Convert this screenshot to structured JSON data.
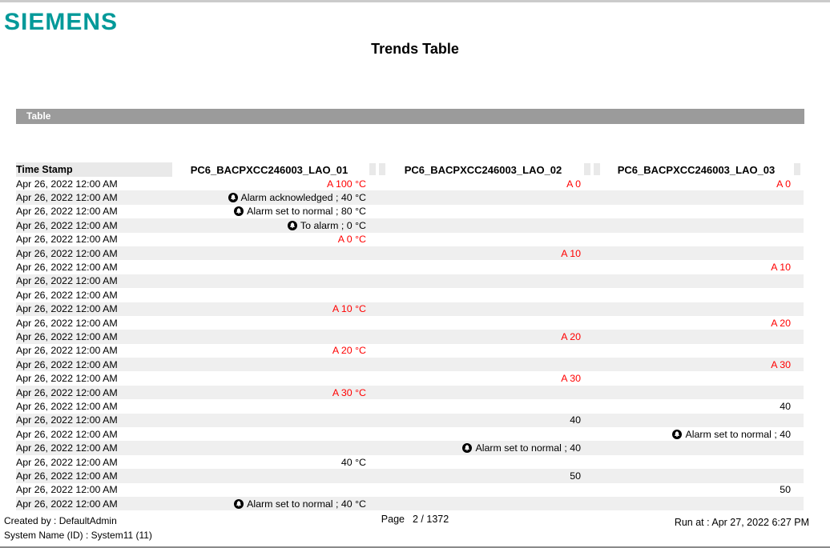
{
  "brand": {
    "logo_text": "SIEMENS",
    "logo_color": "#009999"
  },
  "report": {
    "title": "Trends Table",
    "section_label": "Table"
  },
  "colors": {
    "alarm_value_red": "#ff0000",
    "section_bar_gray": "#9b9b9b",
    "header_cell_gray": "#e9e9e9",
    "row_alternate_gray": "#efefef"
  },
  "icons": {
    "alarm_event": "alarm-bell-icon"
  },
  "table": {
    "columns": [
      "Time Stamp",
      "PC6_BACPXCC246003_LAO_01",
      "PC6_BACPXCC246003_LAO_02",
      "PC6_BACPXCC246003_LAO_03"
    ],
    "rows": [
      {
        "ts": "Apr 26, 2022 12:00 AM",
        "c1": {
          "text": "A 100 °C",
          "red": true
        },
        "c2": {
          "text": "A 0",
          "red": true
        },
        "c3": {
          "text": "A 0",
          "red": true
        }
      },
      {
        "ts": "Apr 26, 2022 12:00 AM",
        "c1": {
          "text": "Alarm acknowledged ; 40 °C",
          "alarm": true
        },
        "c2": null,
        "c3": null
      },
      {
        "ts": "Apr 26, 2022 12:00 AM",
        "c1": {
          "text": "Alarm set to normal ; 80 °C",
          "alarm": true
        },
        "c2": null,
        "c3": null
      },
      {
        "ts": "Apr 26, 2022 12:00 AM",
        "c1": {
          "text": "To alarm ; 0 °C",
          "alarm": true
        },
        "c2": null,
        "c3": null
      },
      {
        "ts": "Apr 26, 2022 12:00 AM",
        "c1": {
          "text": "A 0 °C",
          "red": true
        },
        "c2": null,
        "c3": null
      },
      {
        "ts": "Apr 26, 2022 12:00 AM",
        "c1": null,
        "c2": {
          "text": "A 10",
          "red": true
        },
        "c3": null
      },
      {
        "ts": "Apr 26, 2022 12:00 AM",
        "c1": null,
        "c2": null,
        "c3": {
          "text": "A 10",
          "red": true
        }
      },
      {
        "ts": "Apr 26, 2022 12:00 AM",
        "c1": null,
        "c2": null,
        "c3": null
      },
      {
        "ts": "Apr 26, 2022 12:00 AM",
        "c1": null,
        "c2": null,
        "c3": null
      },
      {
        "ts": "Apr 26, 2022 12:00 AM",
        "c1": {
          "text": "A 10 °C",
          "red": true
        },
        "c2": null,
        "c3": null
      },
      {
        "ts": "Apr 26, 2022 12:00 AM",
        "c1": null,
        "c2": null,
        "c3": {
          "text": "A 20",
          "red": true
        }
      },
      {
        "ts": "Apr 26, 2022 12:00 AM",
        "c1": null,
        "c2": {
          "text": "A 20",
          "red": true
        },
        "c3": null
      },
      {
        "ts": "Apr 26, 2022 12:00 AM",
        "c1": {
          "text": "A 20 °C",
          "red": true
        },
        "c2": null,
        "c3": null
      },
      {
        "ts": "Apr 26, 2022 12:00 AM",
        "c1": null,
        "c2": null,
        "c3": {
          "text": "A 30",
          "red": true
        }
      },
      {
        "ts": "Apr 26, 2022 12:00 AM",
        "c1": null,
        "c2": {
          "text": "A 30",
          "red": true
        },
        "c3": null
      },
      {
        "ts": "Apr 26, 2022 12:00 AM",
        "c1": {
          "text": "A 30 °C",
          "red": true
        },
        "c2": null,
        "c3": null
      },
      {
        "ts": "Apr 26, 2022 12:00 AM",
        "c1": null,
        "c2": null,
        "c3": {
          "text": "40"
        }
      },
      {
        "ts": "Apr 26, 2022 12:00 AM",
        "c1": null,
        "c2": {
          "text": "40"
        },
        "c3": null
      },
      {
        "ts": "Apr 26, 2022 12:00 AM",
        "c1": null,
        "c2": null,
        "c3": {
          "text": "Alarm set to normal ; 40",
          "alarm": true
        }
      },
      {
        "ts": "Apr 26, 2022 12:00 AM",
        "c1": null,
        "c2": {
          "text": "Alarm set to normal ; 40",
          "alarm": true
        },
        "c3": null
      },
      {
        "ts": "Apr 26, 2022 12:00 AM",
        "c1": {
          "text": "40 °C"
        },
        "c2": null,
        "c3": null
      },
      {
        "ts": "Apr 26, 2022 12:00 AM",
        "c1": null,
        "c2": {
          "text": "50"
        },
        "c3": null
      },
      {
        "ts": "Apr 26, 2022 12:00 AM",
        "c1": null,
        "c2": null,
        "c3": {
          "text": "50"
        }
      },
      {
        "ts": "Apr 26, 2022 12:00 AM",
        "c1": {
          "text": "Alarm set to normal ; 40 °C",
          "alarm": true
        },
        "c2": null,
        "c3": null
      }
    ]
  },
  "footer": {
    "created_by": "Created by : DefaultAdmin",
    "system_name": "System Name (ID) : System11 (11)",
    "page_label": "Page",
    "page_value": "2 / 1372",
    "run_at": "Run at : Apr 27, 2022 6:27 PM"
  }
}
